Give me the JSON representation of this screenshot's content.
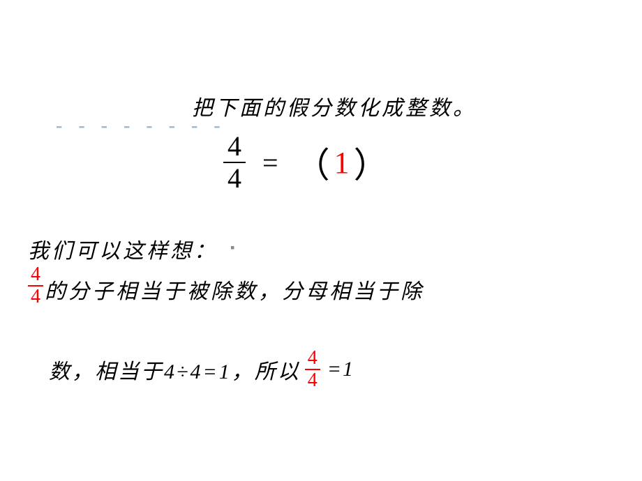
{
  "title": "把下面的假分数化成整数。",
  "dashes": "- - - - - - - -",
  "equation": {
    "numerator": "4",
    "denominator": "4",
    "equals": "=",
    "paren_open": "（",
    "answer": "1",
    "paren_close": "）",
    "answer_color": "#ff0000"
  },
  "think_label": "我们可以这样想：",
  "cursor_dot": "▪",
  "line2": {
    "frac_num": "4",
    "frac_den": "4",
    "frac_color": "#ff0000",
    "text": "的分子相当于被除数，分母相当于除"
  },
  "line3": {
    "text_a": "数，相当于4÷4=1，所以",
    "frac_num": "4",
    "frac_den": "4",
    "frac_color": "#ff0000",
    "text_b": " =1"
  },
  "colors": {
    "text": "#000000",
    "dash": "#9bb8d3",
    "background": "#ffffff"
  }
}
